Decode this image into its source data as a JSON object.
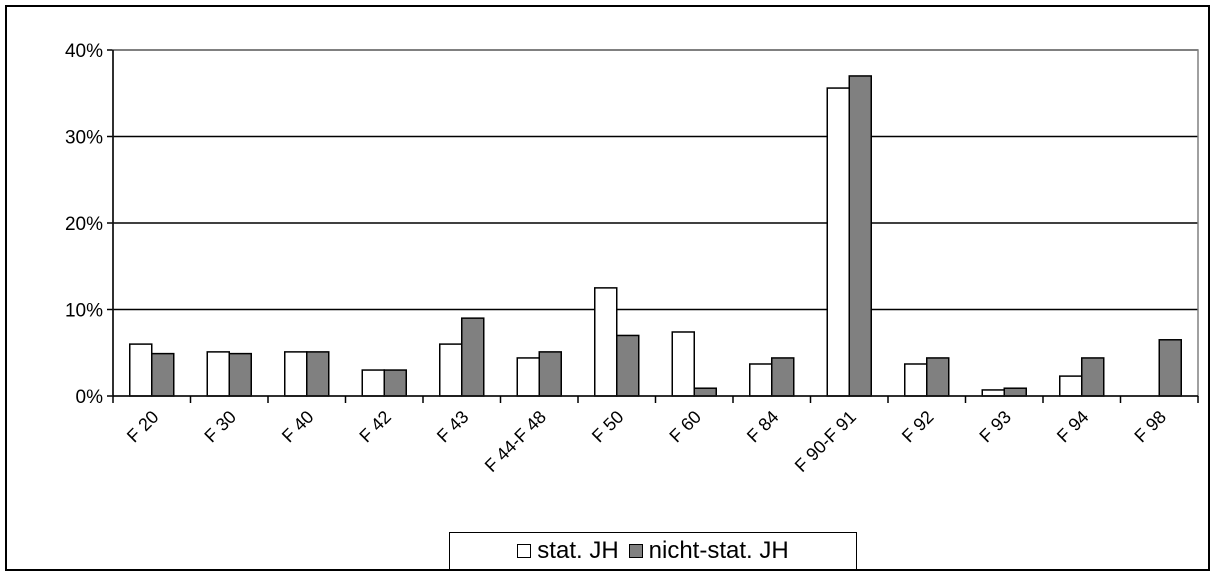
{
  "chart_data": {
    "type": "bar",
    "categories": [
      "F 20",
      "F 30",
      "F 40",
      "F 42",
      "F 43",
      "F 44-F 48",
      "F 50",
      "F 60",
      "F 84",
      "F 90-F 91",
      "F 92",
      "F 93",
      "F 94",
      "F 98"
    ],
    "series": [
      {
        "name": "stat. JH",
        "color": "#ffffff",
        "values": [
          6.0,
          5.1,
          5.1,
          3.0,
          6.0,
          4.4,
          12.5,
          7.4,
          3.7,
          35.6,
          3.7,
          0.7,
          2.3,
          0
        ]
      },
      {
        "name": "nicht-stat. JH",
        "color": "#808080",
        "values": [
          4.9,
          4.9,
          5.1,
          3.0,
          9.0,
          5.1,
          7.0,
          0.9,
          4.4,
          37.0,
          4.4,
          0.9,
          4.4,
          6.5
        ]
      }
    ],
    "y_ticks": [
      "0%",
      "10%",
      "20%",
      "30%",
      "40%"
    ],
    "ylim": [
      0,
      40
    ],
    "grid": true,
    "legend_position": "bottom",
    "title": "",
    "xlabel": "",
    "ylabel": ""
  }
}
